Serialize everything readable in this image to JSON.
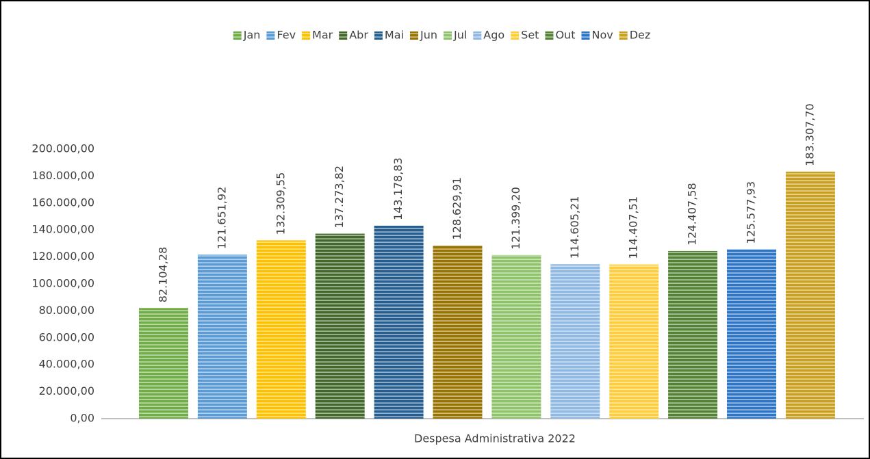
{
  "chart_data": {
    "type": "bar",
    "categories": [
      "Despesa Administrativa 2022"
    ],
    "series": [
      {
        "name": "Jan",
        "color": "#70ad47",
        "values": [
          82104.28
        ],
        "value_labels": [
          "82.104,28"
        ]
      },
      {
        "name": "Fev",
        "color": "#5b9bd5",
        "values": [
          121651.92
        ],
        "value_labels": [
          "121.651,92"
        ]
      },
      {
        "name": "Mar",
        "color": "#ffc000",
        "values": [
          132309.55
        ],
        "value_labels": [
          "132.309,55"
        ]
      },
      {
        "name": "Abr",
        "color": "#43682b",
        "values": [
          137273.82
        ],
        "value_labels": [
          "137.273,82"
        ]
      },
      {
        "name": "Mai",
        "color": "#255e91",
        "values": [
          143178.83
        ],
        "value_labels": [
          "143.178,83"
        ]
      },
      {
        "name": "Jun",
        "color": "#997300",
        "values": [
          128629.91
        ],
        "value_labels": [
          "128.629,91"
        ]
      },
      {
        "name": "Jul",
        "color": "#8fc36a",
        "values": [
          121399.2
        ],
        "value_labels": [
          "121.399,20"
        ]
      },
      {
        "name": "Ago",
        "color": "#8fb9e3",
        "values": [
          114605.21
        ],
        "value_labels": [
          "114.605,21"
        ]
      },
      {
        "name": "Set",
        "color": "#ffcd3c",
        "values": [
          114407.51
        ],
        "value_labels": [
          "114.407,51"
        ]
      },
      {
        "name": "Out",
        "color": "#548235",
        "values": [
          124407.58
        ],
        "value_labels": [
          "124.407,58"
        ]
      },
      {
        "name": "Nov",
        "color": "#2e75c6",
        "values": [
          125577.93
        ],
        "value_labels": [
          "125.577,93"
        ]
      },
      {
        "name": "Dez",
        "color": "#c9a020",
        "values": [
          183307.7
        ],
        "value_labels": [
          "183.307,70"
        ]
      }
    ],
    "ylim": [
      0,
      200000
    ],
    "yticks": [
      {
        "value": 0,
        "label": "0,00"
      },
      {
        "value": 20000,
        "label": "20.000,00"
      },
      {
        "value": 40000,
        "label": "40.000,00"
      },
      {
        "value": 60000,
        "label": "60.000,00"
      },
      {
        "value": 80000,
        "label": "80.000,00"
      },
      {
        "value": 100000,
        "label": "100.000,00"
      },
      {
        "value": 120000,
        "label": "120.000,00"
      },
      {
        "value": 140000,
        "label": "140.000,00"
      },
      {
        "value": 160000,
        "label": "160.000,00"
      },
      {
        "value": 180000,
        "label": "180.000,00"
      },
      {
        "value": 200000,
        "label": "200.000,00"
      }
    ],
    "grid": false,
    "legend": "top"
  }
}
